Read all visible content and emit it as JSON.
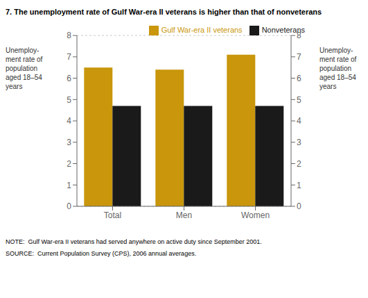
{
  "chart_data": {
    "type": "bar",
    "title": "7. The unemployment rate of Gulf War-era II veterans is higher than that of nonveterans",
    "categories": [
      "Total",
      "Men",
      "Women"
    ],
    "series": [
      {
        "name": "Gulf War-era II veterans",
        "color": "#C9960C",
        "values": [
          6.5,
          6.4,
          7.1
        ]
      },
      {
        "name": "Nonveterans",
        "color": "#1A1A1A",
        "values": [
          4.7,
          4.7,
          4.7
        ]
      }
    ],
    "ylim": [
      0,
      8
    ],
    "yticks": [
      0,
      1,
      2,
      3,
      4,
      5,
      6,
      7,
      8
    ],
    "y2lim": [
      0,
      8
    ],
    "y2ticks": [
      0,
      1,
      2,
      3,
      4,
      5,
      6,
      7,
      8
    ],
    "ylabel": "Unemploy-\nment rate of\npopulation\naged 18–54\nyears",
    "y2label": "Unemploy-\nment rate of\npopulation\naged 18–54\nyears",
    "legend": "upper right",
    "annotations": [
      "NOTE:  Gulf War-era II veterans had served anywhere on active duty since September 2001.",
      "SOURCE:  Current Population Survey (CPS), 2006 annual averages."
    ]
  }
}
